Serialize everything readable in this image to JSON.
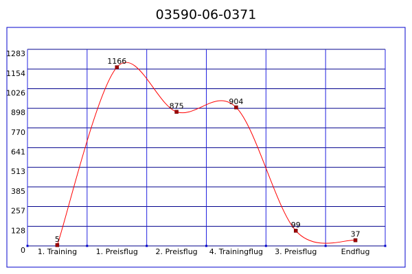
{
  "chart_data": {
    "type": "line",
    "title": "03590-06-0371",
    "categories": [
      "1. Training",
      "1. Preisflug",
      "2. Preisflug",
      "4. Trainingflug",
      "3. Preisflug",
      "Endflug"
    ],
    "series": [
      {
        "color": "#ff0000",
        "values": [
          5,
          1166,
          875,
          904,
          99,
          37
        ]
      }
    ],
    "ylim": [
      0,
      1283
    ],
    "yticks": [
      0,
      128,
      257,
      385,
      513,
      641,
      770,
      898,
      1026,
      1154,
      1283
    ],
    "grid": true,
    "smooth": true
  }
}
